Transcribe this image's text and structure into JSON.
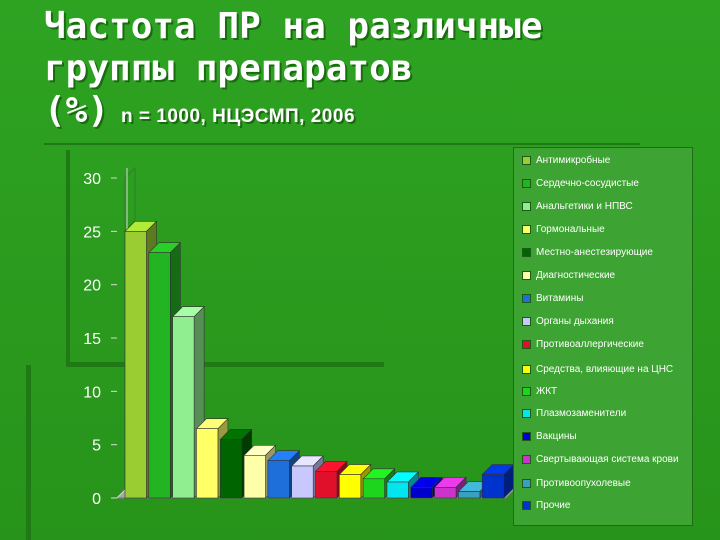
{
  "title": {
    "line1": "Частота ПР на различные",
    "line2": "группы препаратов",
    "line3_main": "(%)",
    "line3_sub": "n = 1000, НЦЭСМП, 2006"
  },
  "chart_data": {
    "type": "bar",
    "title": "Частота ПР на различные группы препаратов (%) n = 1000, НЦЭСМП, 2006",
    "ylim": [
      0,
      30
    ],
    "yticks": [
      "0",
      "5",
      "10",
      "15",
      "20",
      "25",
      "30"
    ],
    "legend_position": "right",
    "series": [
      {
        "name": "Антимикробные",
        "value": 25,
        "color": "#9acd32"
      },
      {
        "name": "Сердечно-сосудистые",
        "value": 23,
        "color": "#22b422"
      },
      {
        "name": "Анальгетики и НПВС",
        "value": 17,
        "color": "#90ee90"
      },
      {
        "name": "Гормональные",
        "value": 6.5,
        "color": "#ffff66"
      },
      {
        "name": "Местно-анестезирующие",
        "value": 5.5,
        "color": "#006400"
      },
      {
        "name": "Диагностические",
        "value": 4,
        "color": "#ffffaa"
      },
      {
        "name": "Витамины",
        "value": 3.5,
        "color": "#1e6fd9"
      },
      {
        "name": "Органы дыхания",
        "value": 3,
        "color": "#c8c8ff"
      },
      {
        "name": "Противоаллергические",
        "value": 2.5,
        "color": "#e0102a"
      },
      {
        "name": "Средства, влияющие на ЦНС",
        "value": 2.2,
        "color": "#ffff00"
      },
      {
        "name": "ЖКТ",
        "value": 1.8,
        "color": "#1dd51d"
      },
      {
        "name": "Плазмозаменители",
        "value": 1.5,
        "color": "#00e5ee"
      },
      {
        "name": "Вакцины",
        "value": 1,
        "color": "#0000cc"
      },
      {
        "name": "Свертывающая система крови",
        "value": 1,
        "color": "#cc33cc"
      },
      {
        "name": "Противоопухолевые",
        "value": 0.6,
        "color": "#3aa0c0"
      },
      {
        "name": "Прочие",
        "value": 2.2,
        "color": "#0033cc"
      }
    ]
  }
}
